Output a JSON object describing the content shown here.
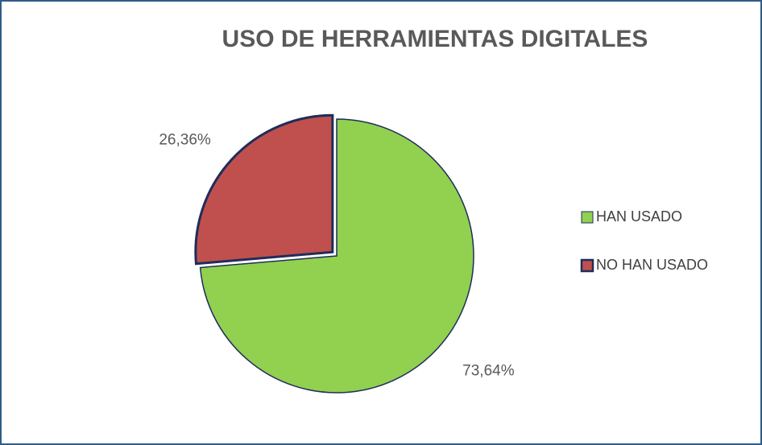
{
  "chart_data": {
    "type": "pie",
    "title": "USO DE HERRAMIENTAS DIGITALES",
    "categories": [
      "HAN USADO",
      "NO HAN USADO"
    ],
    "values": [
      73.64,
      26.36
    ],
    "value_labels": [
      "73,64%",
      "26,36%"
    ],
    "colors": [
      "#92d050",
      "#c0504d"
    ],
    "legend": "right"
  }
}
